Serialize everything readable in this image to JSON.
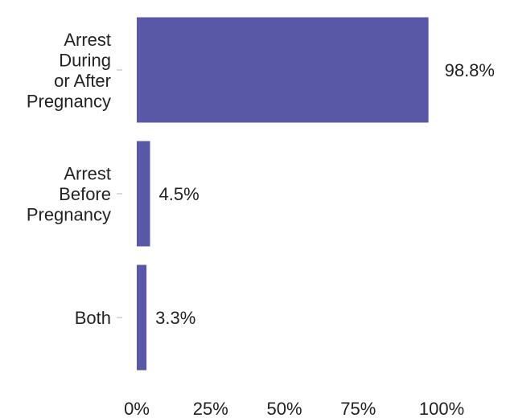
{
  "chart_data": {
    "type": "bar",
    "orientation": "horizontal",
    "categories": [
      [
        "Arrest",
        "During",
        "or After",
        "Pregnancy"
      ],
      [
        "Arrest",
        "Before",
        "Pregnancy"
      ],
      [
        "Both"
      ]
    ],
    "values": [
      98.8,
      4.5,
      3.3
    ],
    "value_labels": [
      "98.8%",
      "4.5%",
      "3.3%"
    ],
    "xlim": [
      0,
      100
    ],
    "x_ticks": [
      0,
      25,
      50,
      75,
      100
    ],
    "x_tick_labels": [
      "0%",
      "25%",
      "50%",
      "75%",
      "100%"
    ],
    "bar_color": "#5858a6",
    "grid": false,
    "legend": "none"
  }
}
